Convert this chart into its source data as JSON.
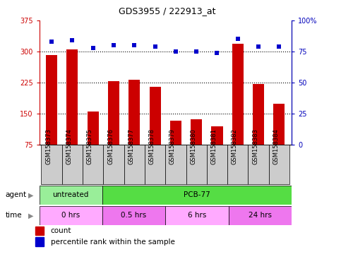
{
  "title": "GDS3955 / 222913_at",
  "samples": [
    "GSM158373",
    "GSM158374",
    "GSM158375",
    "GSM158376",
    "GSM158377",
    "GSM158378",
    "GSM158379",
    "GSM158380",
    "GSM158381",
    "GSM158382",
    "GSM158383",
    "GSM158384"
  ],
  "counts": [
    292,
    305,
    155,
    228,
    232,
    215,
    133,
    137,
    120,
    318,
    222,
    175
  ],
  "percentiles": [
    83,
    84,
    78,
    80,
    80,
    79,
    75,
    75,
    74,
    85,
    79,
    79
  ],
  "ylim_left": [
    75,
    375
  ],
  "ylim_right": [
    0,
    100
  ],
  "yticks_left": [
    75,
    150,
    225,
    300,
    375
  ],
  "yticks_right": [
    0,
    25,
    50,
    75,
    100
  ],
  "bar_color": "#CC0000",
  "dot_color": "#0000CC",
  "agent_groups": [
    {
      "label": "untreated",
      "start": 0,
      "end": 3,
      "color": "#99EE99"
    },
    {
      "label": "PCB-77",
      "start": 3,
      "end": 12,
      "color": "#55DD44"
    }
  ],
  "time_groups": [
    {
      "label": "0 hrs",
      "start": 0,
      "end": 3,
      "color": "#FFAAFF"
    },
    {
      "label": "0.5 hrs",
      "start": 3,
      "end": 6,
      "color": "#EE77EE"
    },
    {
      "label": "6 hrs",
      "start": 6,
      "end": 9,
      "color": "#FFAAFF"
    },
    {
      "label": "24 hrs",
      "start": 9,
      "end": 12,
      "color": "#EE77EE"
    }
  ],
  "tick_color_left": "#CC0000",
  "tick_color_right": "#0000BB",
  "grid_yticks": [
    150,
    225,
    300
  ]
}
